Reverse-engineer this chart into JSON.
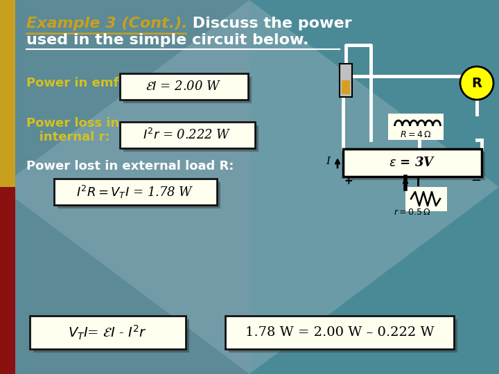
{
  "bg_color": "#5c8a96",
  "bg_color2": "#6a9aa8",
  "diamond_color": "#7aabb8",
  "left_gold": "#c8a020",
  "left_red": "#8b1010",
  "title_yellow": "Example 3 (Cont.).",
  "title_white1": " Discuss the power",
  "title_white2": "used in the simple circuit below.",
  "label_yellow": "#d4c020",
  "label_white": "#ffffff",
  "box_bg": "#fffff0",
  "box_border": "#111111",
  "shadow_alpha": 0.45,
  "teal_bg": "#3d7a80"
}
